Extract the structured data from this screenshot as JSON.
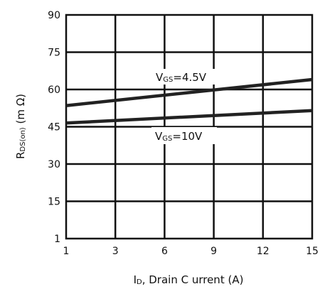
{
  "chart_data": {
    "type": "line",
    "xlabel": {
      "main": "I",
      "sub": "D",
      "rest": ", Drain C urrent (A)"
    },
    "ylabel": {
      "main": "R",
      "sub": "DS(on)",
      "rest": " (m Ω)"
    },
    "x_ticks": [
      "1",
      "3",
      "6",
      "9",
      "12",
      "15"
    ],
    "y_ticks": [
      "1",
      "15",
      "30",
      "45",
      "60",
      "75",
      "90"
    ],
    "xlim": [
      1,
      15
    ],
    "ylim": [
      1,
      90
    ],
    "grid": true,
    "series": [
      {
        "name": {
          "main": "V",
          "sub": "GS",
          "rest": "=4.5V"
        },
        "x": [
          1,
          15
        ],
        "y": [
          53.5,
          64
        ]
      },
      {
        "name": {
          "main": "V",
          "sub": "GS",
          "rest": "=10V"
        },
        "x": [
          1,
          15
        ],
        "y": [
          46.5,
          51.5
        ]
      }
    ]
  }
}
